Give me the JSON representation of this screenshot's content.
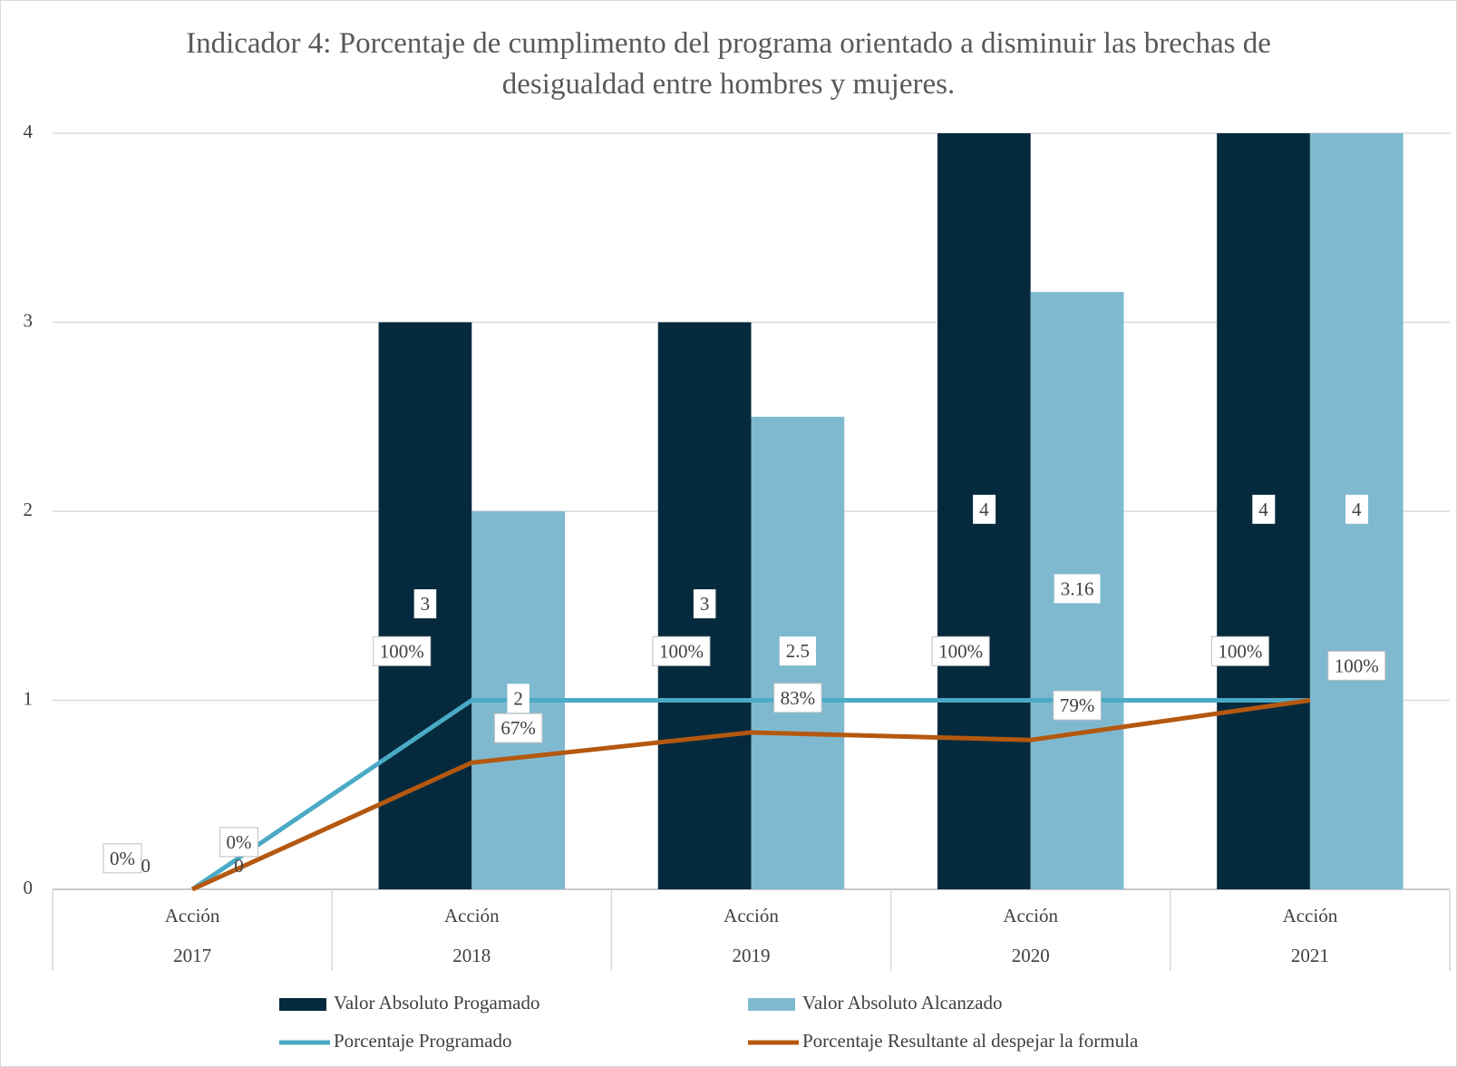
{
  "chart_data": {
    "type": "bar-line",
    "title": "Indicador 4: Porcentaje de cumplimento del programa orientado a disminuir las brechas de desigualdad entre hombres y mujeres.",
    "categories": [
      [
        "Acción",
        "2017"
      ],
      [
        "Acción",
        "2018"
      ],
      [
        "Acción",
        "2019"
      ],
      [
        "Acción",
        "2020"
      ],
      [
        "Acción",
        "2021"
      ]
    ],
    "ylim": [
      0,
      4
    ],
    "yticks": [
      0,
      1,
      2,
      3,
      4
    ],
    "grid": true,
    "legend": "bottom",
    "series": [
      {
        "name": "Valor Absoluto Progamado",
        "type": "bar",
        "color": "#062a3d",
        "values": [
          0,
          3,
          3,
          4,
          4
        ]
      },
      {
        "name": "Valor Absoluto Alcanzado",
        "type": "bar",
        "color": "#7fb9d0",
        "values": [
          0,
          2,
          2.5,
          3.16,
          4
        ]
      },
      {
        "name": "Porcentaje Programado",
        "type": "line",
        "color": "#4aaac6",
        "values": [
          0,
          1,
          1,
          1,
          1
        ],
        "value_labels": [
          "0%",
          "100%",
          "100%",
          "100%",
          "100%"
        ]
      },
      {
        "name": "Porcentaje Resultante al despejar la formula",
        "type": "line",
        "color": "#b5580f",
        "values": [
          0,
          0.67,
          0.83,
          0.79,
          1
        ],
        "value_labels": [
          "0%",
          "67%",
          "83%",
          "79%",
          "100%"
        ]
      }
    ]
  }
}
